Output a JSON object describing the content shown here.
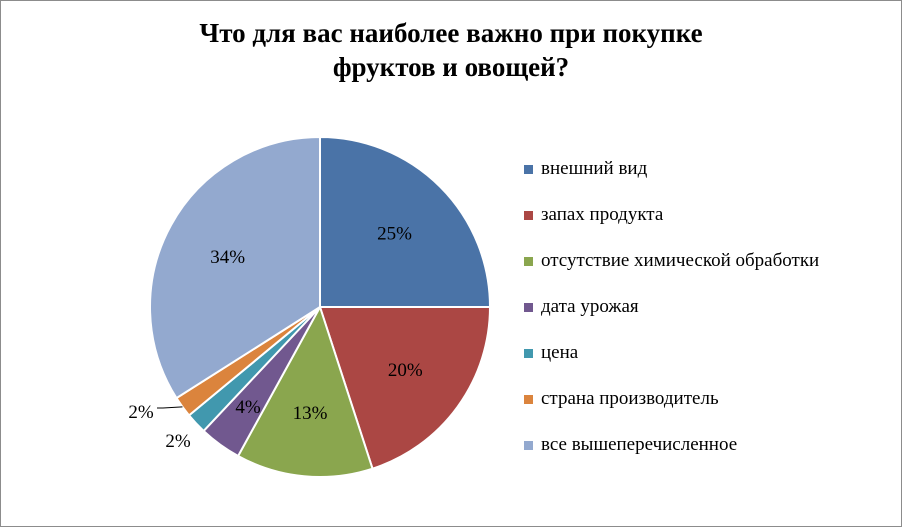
{
  "chart_data": {
    "type": "pie",
    "title_lines": [
      "Что для вас наиболее важно при покупке",
      "фруктов и овощей?"
    ],
    "slices": [
      {
        "label": "внешний вид",
        "value": 25,
        "display": "25%",
        "color": "#4a73a7"
      },
      {
        "label": "запах продукта",
        "value": 20,
        "display": "20%",
        "color": "#ab4744"
      },
      {
        "label": "отсутствие химической обработки",
        "value": 13,
        "display": "13%",
        "color": "#8aa64e"
      },
      {
        "label": "дата урожая",
        "value": 4,
        "display": "4%",
        "color": "#71588f"
      },
      {
        "label": "цена",
        "value": 2,
        "display": "2%",
        "color": "#4198ae"
      },
      {
        "label": "страна производитель",
        "value": 2,
        "display": "2%",
        "color": "#db843d"
      },
      {
        "label": "все вышеперечисленное",
        "value": 34,
        "display": "34%",
        "color": "#93a9cf"
      }
    ],
    "legend_position": "right"
  }
}
